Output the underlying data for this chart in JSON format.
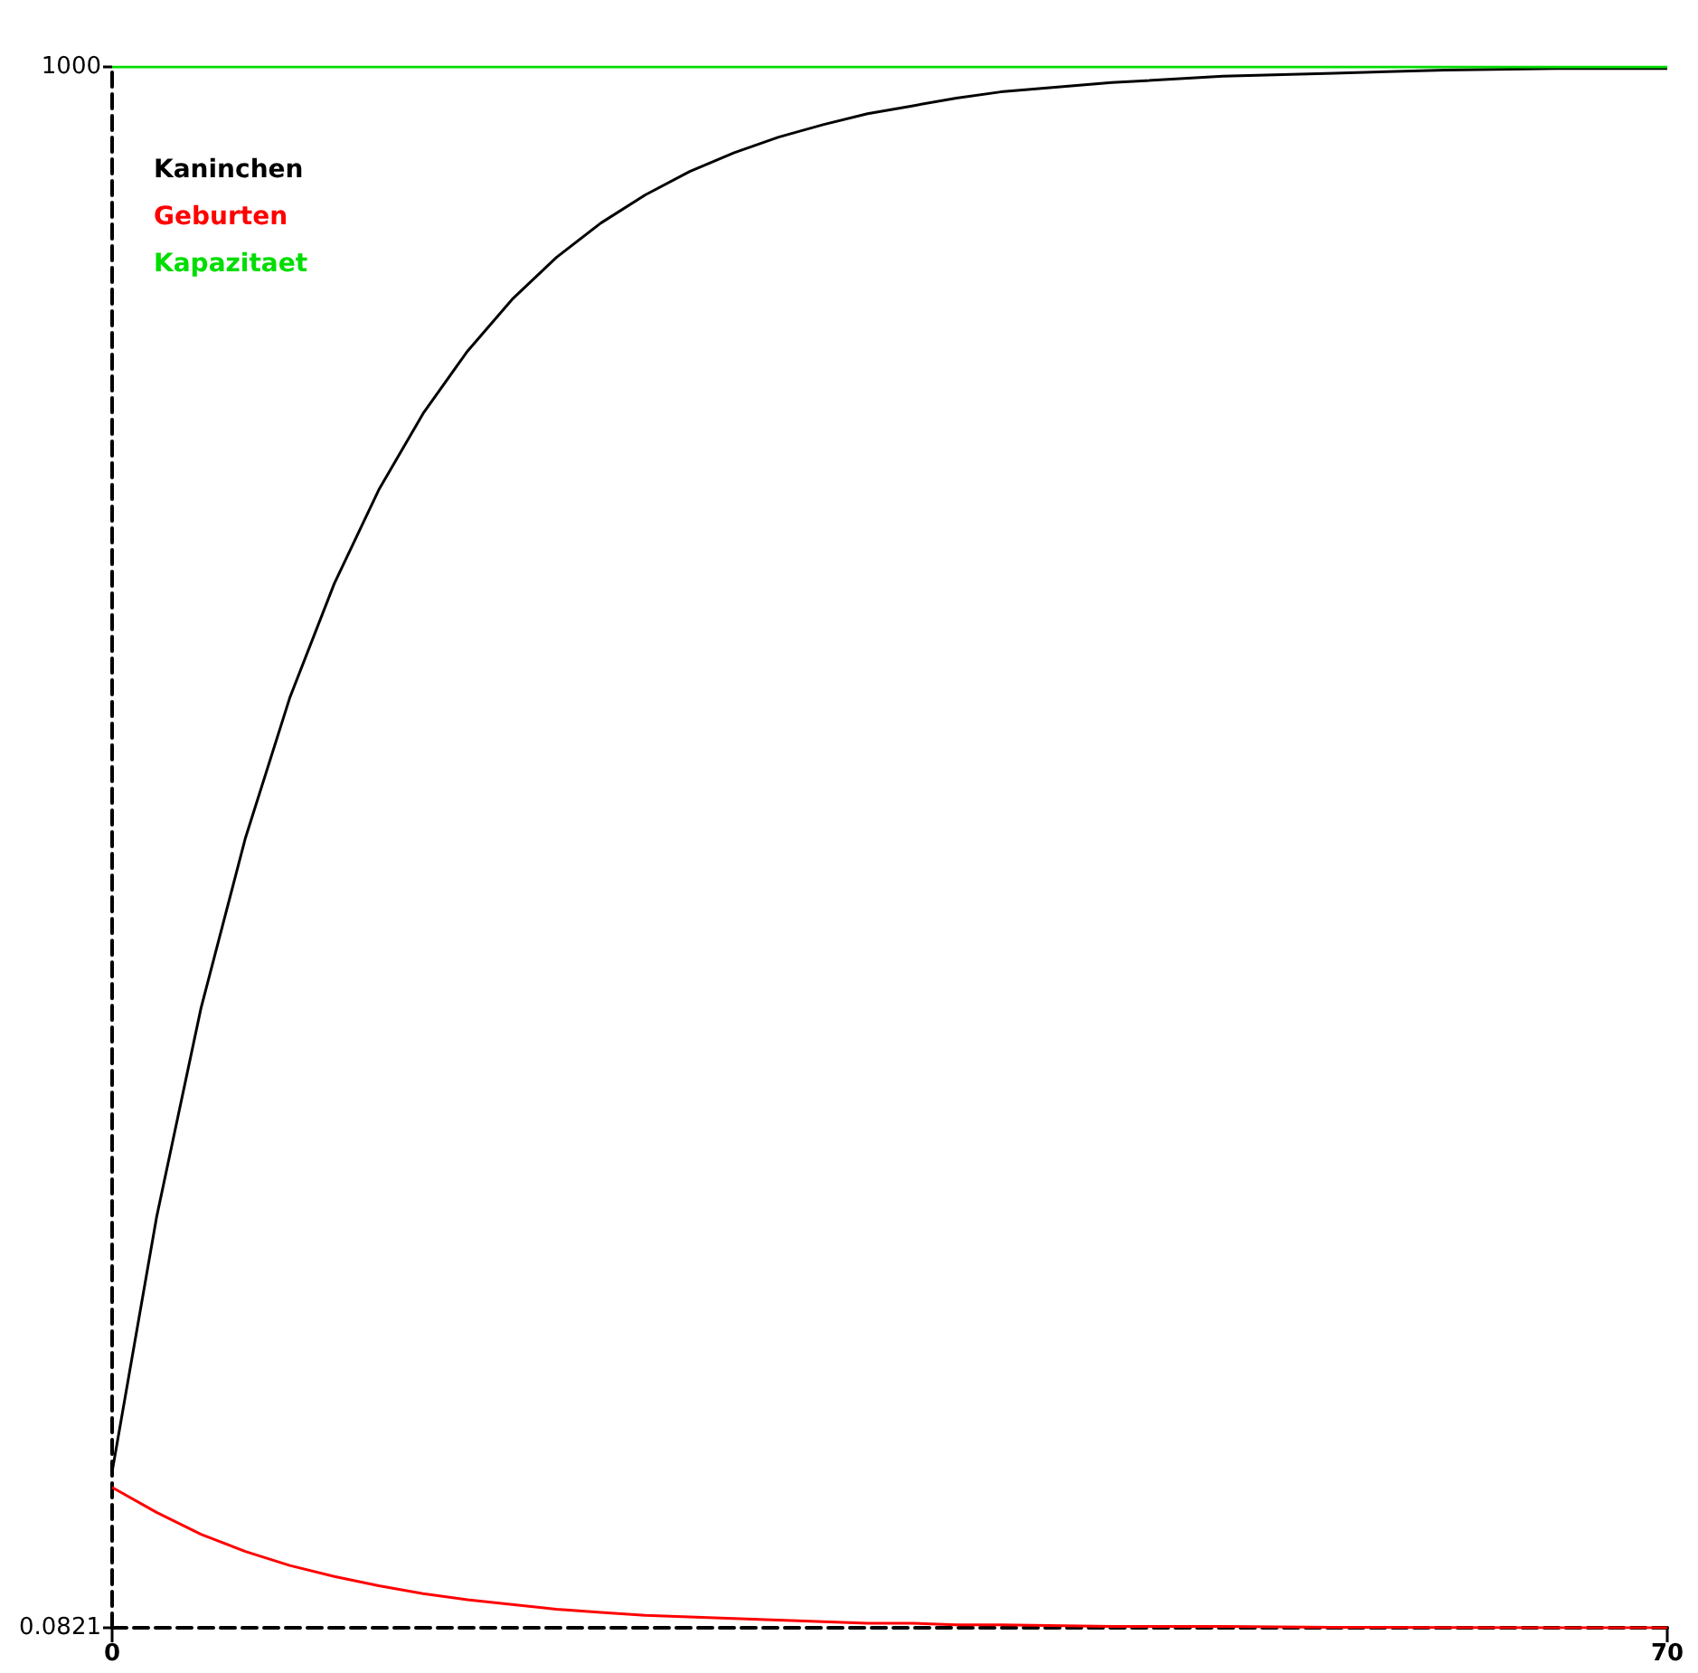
{
  "chart_data": {
    "type": "line",
    "x": [
      0,
      2,
      4,
      6,
      8,
      10,
      12,
      14,
      16,
      18,
      20,
      22,
      24,
      26,
      28,
      30,
      32,
      34,
      36,
      38,
      40,
      45,
      50,
      55,
      60,
      65,
      70
    ],
    "series": [
      {
        "name": "Kaninchen",
        "color": "#000000",
        "values": [
          100,
          263,
          397,
          506,
          596,
          669,
          729,
          778,
          818,
          851,
          878,
          900,
          918,
          933,
          945,
          955,
          963,
          970,
          975,
          980,
          984,
          990,
          994,
          996,
          998,
          999,
          999
        ]
      },
      {
        "name": "Geburten",
        "color": "#ff0000",
        "values": [
          90,
          74,
          60,
          49,
          40,
          33,
          27,
          22,
          18,
          15,
          12,
          10,
          8,
          7,
          6,
          5,
          4,
          3,
          3,
          2,
          2,
          1,
          1,
          0.4,
          0.2,
          0.1,
          0.1
        ]
      },
      {
        "name": "Kapazitaet",
        "color": "#00dd00",
        "x": [
          0,
          70
        ],
        "values": [
          1000,
          1000
        ]
      }
    ],
    "xlim": [
      0,
      70
    ],
    "xticks": [
      0,
      70
    ],
    "ylim": [
      0.0821,
      1000
    ],
    "yticks": [
      0.0821,
      1000
    ],
    "grid": false,
    "legend": "top left",
    "marker": "none",
    "line_style": "solid"
  }
}
